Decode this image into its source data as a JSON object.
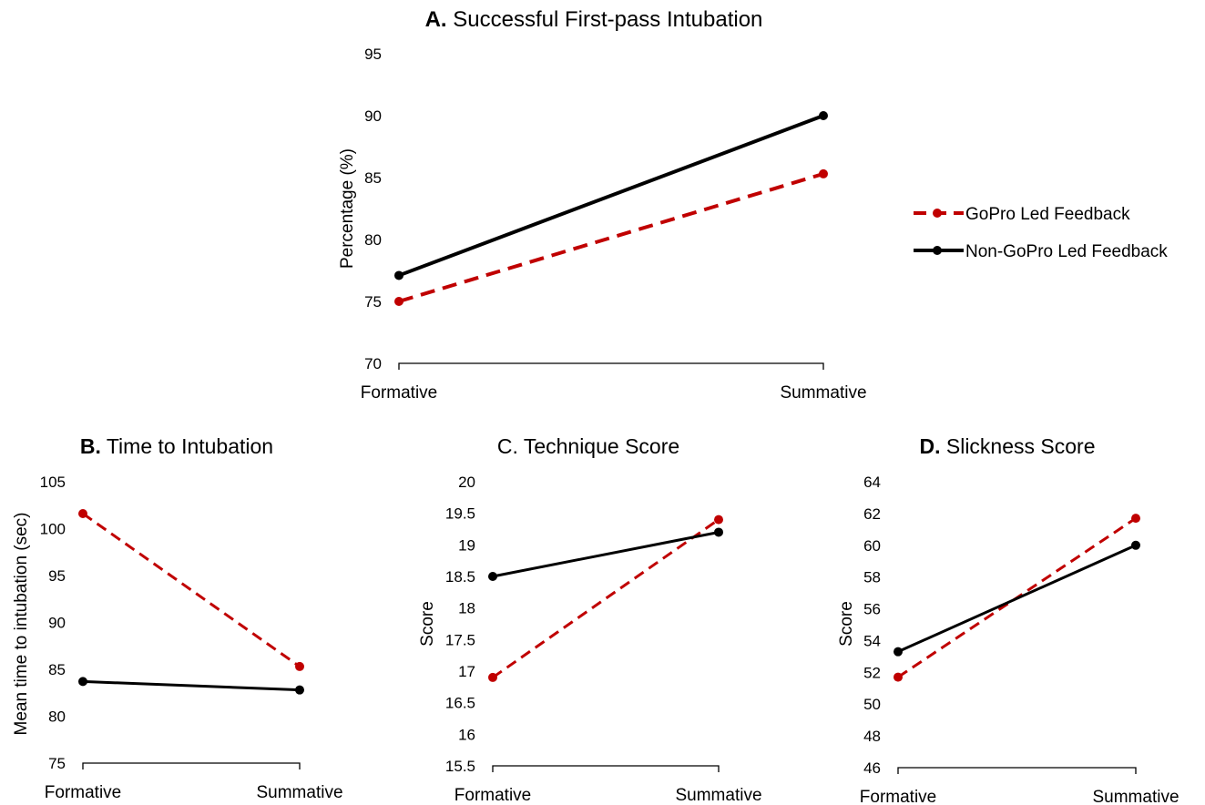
{
  "colors": {
    "gopro": "#c00000",
    "nongopro": "#000000"
  },
  "legend": {
    "items": [
      {
        "key": "gopro",
        "label": "GoPro Led Feedback",
        "dashed": true
      },
      {
        "key": "nongopro",
        "label": "Non-GoPro Led Feedback",
        "dashed": false
      }
    ]
  },
  "chart_data": [
    {
      "id": "A",
      "type": "line",
      "title_prefix": "A.",
      "title_text": "Successful First-pass Intubation",
      "title_prefix_bold": true,
      "categories": [
        "Formative",
        "Summative"
      ],
      "ylabel": "Percentage (%)",
      "ylim": [
        70,
        95
      ],
      "yticks": [
        70,
        75,
        80,
        85,
        90,
        95
      ],
      "ytick_labels": [
        "70",
        "75",
        "80",
        "85",
        "90",
        "95"
      ],
      "series": [
        {
          "name": "GoPro Led Feedback",
          "key": "gopro",
          "values": [
            75,
            85.3
          ]
        },
        {
          "name": "Non-GoPro Led Feedback",
          "key": "nongopro",
          "values": [
            77.1,
            90
          ]
        }
      ]
    },
    {
      "id": "B",
      "type": "line",
      "title_prefix": "B.",
      "title_text": "Time to Intubation",
      "title_prefix_bold": true,
      "categories": [
        "Formative",
        "Summative"
      ],
      "ylabel": "Mean time to intubation (sec)",
      "ylim": [
        75,
        105
      ],
      "yticks": [
        75,
        80,
        85,
        90,
        95,
        100,
        105
      ],
      "ytick_labels": [
        "75",
        "80",
        "85",
        "90",
        "95",
        "100",
        "105"
      ],
      "series": [
        {
          "name": "GoPro Led Feedback",
          "key": "gopro",
          "values": [
            101.6,
            85.3
          ]
        },
        {
          "name": "Non-GoPro Led Feedback",
          "key": "nongopro",
          "values": [
            83.7,
            82.8
          ]
        }
      ]
    },
    {
      "id": "C",
      "type": "line",
      "title_prefix": "C.",
      "title_text": "Technique Score",
      "title_prefix_bold": false,
      "categories": [
        "Formative",
        "Summative"
      ],
      "ylabel": "Score",
      "ylim": [
        15.5,
        20
      ],
      "yticks": [
        15.5,
        16,
        16.5,
        17,
        17.5,
        18,
        18.5,
        19,
        19.5,
        20
      ],
      "ytick_labels": [
        "15.5",
        "16",
        "16.5",
        "17",
        "17.5",
        "18",
        "18.5",
        "19",
        "19.5",
        "20"
      ],
      "series": [
        {
          "name": "GoPro Led Feedback",
          "key": "gopro",
          "values": [
            16.9,
            19.4
          ]
        },
        {
          "name": "Non-GoPro Led Feedback",
          "key": "nongopro",
          "values": [
            18.5,
            19.2
          ]
        }
      ]
    },
    {
      "id": "D",
      "type": "line",
      "title_prefix": "D.",
      "title_text": "Slickness Score",
      "title_prefix_bold": true,
      "categories": [
        "Formative",
        "Summative"
      ],
      "ylabel": "Score",
      "ylim": [
        46,
        64
      ],
      "yticks": [
        46,
        48,
        50,
        52,
        54,
        56,
        58,
        60,
        62,
        64
      ],
      "ytick_labels": [
        "46",
        "48",
        "50",
        "52",
        "54",
        "56",
        "58",
        "60",
        "62",
        "64"
      ],
      "series": [
        {
          "name": "GoPro Led Feedback",
          "key": "gopro",
          "values": [
            51.7,
            61.7
          ]
        },
        {
          "name": "Non-GoPro Led Feedback",
          "key": "nongopro",
          "values": [
            53.3,
            60
          ]
        }
      ]
    }
  ]
}
